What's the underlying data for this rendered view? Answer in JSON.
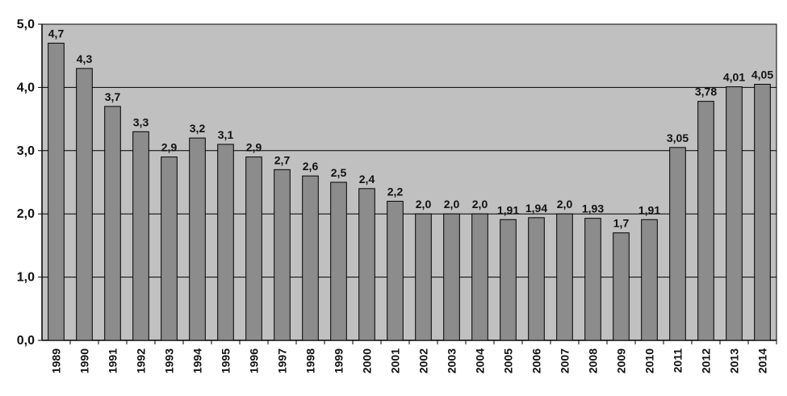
{
  "chart_data": {
    "type": "bar",
    "title": "",
    "xlabel": "",
    "ylabel": "",
    "ylim": [
      0,
      5
    ],
    "grid": true,
    "yticks": [
      "0,0",
      "1,0",
      "2,0",
      "3,0",
      "4,0",
      "5,0"
    ],
    "categories": [
      "1989",
      "1990",
      "1991",
      "1992",
      "1993",
      "1994",
      "1995",
      "1996",
      "1997",
      "1998",
      "1999",
      "2000",
      "2001",
      "2002",
      "2003",
      "2004",
      "2005",
      "2006",
      "2007",
      "2008",
      "2009",
      "2010",
      "2011",
      "2012",
      "2013",
      "2014"
    ],
    "values": [
      4.7,
      4.3,
      3.7,
      3.3,
      2.9,
      3.2,
      3.1,
      2.9,
      2.7,
      2.6,
      2.5,
      2.4,
      2.2,
      2.0,
      2.0,
      2.0,
      1.91,
      1.94,
      2.0,
      1.93,
      1.7,
      1.91,
      3.05,
      3.78,
      4.01,
      4.05
    ],
    "data_labels": [
      "4,7",
      "4,3",
      "3,7",
      "3,3",
      "2,9",
      "3,2",
      "3,1",
      "2,9",
      "2,7",
      "2,6",
      "2,5",
      "2,4",
      "2,2",
      "2,0",
      "2,0",
      "2,0",
      "1,91",
      "1,94",
      "2,0",
      "1,93",
      "1,7",
      "1,91",
      "3,05",
      "3,78",
      "4,01",
      "4,05"
    ],
    "colors": {
      "plot_bg": "#c0c0c0",
      "bar": "#8c8c8c",
      "bar_stroke": "#000000",
      "grid": "#000000"
    }
  }
}
